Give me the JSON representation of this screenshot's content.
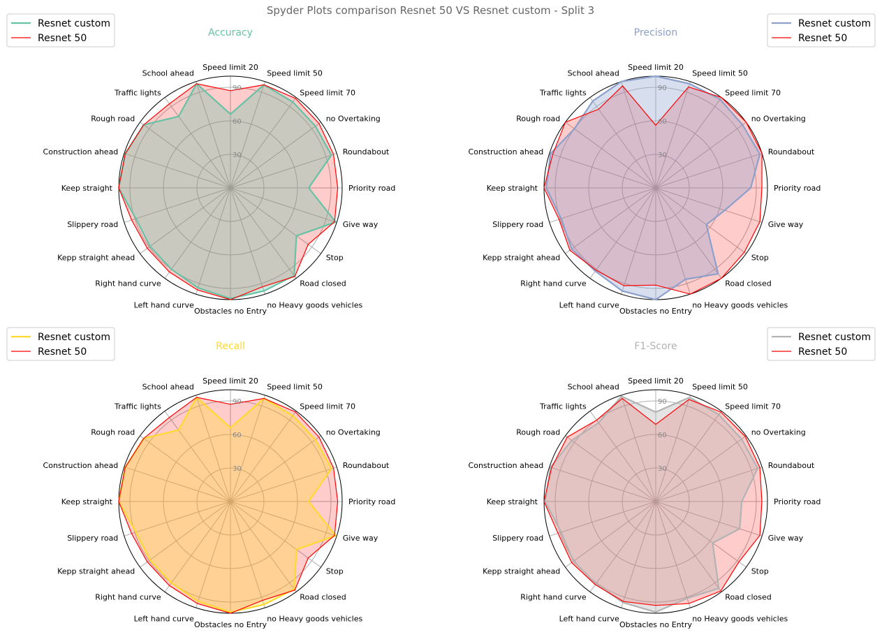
{
  "figure": {
    "title": "Spyder Plots comparison Resnet 50 VS Resnet custom - Split 3"
  },
  "chart_data": [
    {
      "type": "radar",
      "title": "Accuracy",
      "color": "#66c2a5",
      "categories": [
        "Speed limit 20",
        "Speed limit 50",
        "Speed limit 70",
        "no Overtaking",
        "Roundabout",
        "Priority road",
        "Give way",
        "Stop",
        "Road closed",
        "no Heavy goods vehicles",
        "Obstacles no Entry",
        "Left hand curve",
        "Right hand curve",
        "Kepp straight ahead",
        "Slippery road",
        "Keep straight",
        "Construction ahead",
        "Rough road",
        "Traffic lights",
        "School ahead"
      ],
      "ticks": [
        30,
        60,
        90
      ],
      "rlim": [
        0,
        100
      ],
      "legend_loc": "top-left",
      "series": [
        {
          "name": "Resnet custom",
          "values": [
            66,
            97,
            95,
            94,
            95,
            70,
            99,
            73,
            97,
            97,
            99,
            94,
            90,
            89,
            89,
            100,
            99,
            96,
            79,
            98
          ]
        },
        {
          "name": "Resnet 50",
          "values": [
            87,
            97,
            99,
            98,
            97,
            96,
            98,
            86,
            98,
            93,
            100,
            96,
            93,
            92,
            93,
            100,
            99,
            96,
            93,
            98
          ]
        }
      ]
    },
    {
      "type": "radar",
      "title": "Precision",
      "color": "#8da0cb",
      "categories": [
        "Speed limit 20",
        "Speed limit 50",
        "Speed limit 70",
        "no Overtaking",
        "Roundabout",
        "Priority road",
        "Give way",
        "Stop",
        "Road closed",
        "no Heavy goods vehicles",
        "Obstacles no Entry",
        "Left hand curve",
        "Right hand curve",
        "Kepp straight ahead",
        "Slippery road",
        "Keep straight",
        "Construction ahead",
        "Rough road",
        "Traffic lights",
        "School ahead"
      ],
      "ticks": [
        30,
        60,
        90
      ],
      "rlim": [
        0,
        100
      ],
      "legend_loc": "top-right",
      "series": [
        {
          "name": "Resnet custom",
          "values": [
            100,
            98,
            98,
            96,
            98,
            85,
            65,
            56,
            95,
            86,
            100,
            97,
            92,
            93,
            89,
            98,
            99,
            90,
            96,
            100
          ]
        },
        {
          "name": "Resnet 50",
          "values": [
            56,
            95,
            100,
            100,
            100,
            95,
            98,
            98,
            100,
            100,
            87,
            92,
            91,
            95,
            91,
            100,
            97,
            100,
            87,
            96
          ]
        }
      ]
    },
    {
      "type": "radar",
      "title": "Recall",
      "color": "#ffd92f",
      "categories": [
        "Speed limit 20",
        "Speed limit 50",
        "Speed limit 70",
        "no Overtaking",
        "Roundabout",
        "Priority road",
        "Give way",
        "Stop",
        "Road closed",
        "no Heavy goods vehicles",
        "Obstacles no Entry",
        "Left hand curve",
        "Right hand curve",
        "Kepp straight ahead",
        "Slippery road",
        "Keep straight",
        "Construction ahead",
        "Rough road",
        "Traffic lights",
        "School ahead"
      ],
      "ticks": [
        30,
        60,
        90
      ],
      "rlim": [
        0,
        100
      ],
      "legend_loc": "top-left",
      "series": [
        {
          "name": "Resnet custom",
          "values": [
            66,
            97,
            95,
            94,
            95,
            70,
            99,
            73,
            97,
            97,
            99,
            94,
            90,
            89,
            89,
            100,
            99,
            96,
            79,
            98
          ]
        },
        {
          "name": "Resnet 50",
          "values": [
            87,
            97,
            99,
            98,
            97,
            96,
            98,
            86,
            98,
            93,
            100,
            96,
            93,
            92,
            93,
            100,
            99,
            96,
            93,
            98
          ]
        }
      ]
    },
    {
      "type": "radar",
      "title": "F1-Score",
      "color": "#b3b3b3",
      "categories": [
        "Speed limit 20",
        "Speed limit 50",
        "Speed limit 70",
        "no Overtaking",
        "Roundabout",
        "Priority road",
        "Give way",
        "Stop",
        "Road closed",
        "no Heavy goods vehicles",
        "Obstacles no Entry",
        "Left hand curve",
        "Right hand curve",
        "Kepp straight ahead",
        "Slippery road",
        "Keep straight",
        "Construction ahead",
        "Rough road",
        "Traffic lights",
        "School ahead"
      ],
      "ticks": [
        30,
        60,
        90
      ],
      "rlim": [
        0,
        100
      ],
      "legend_loc": "top-right",
      "series": [
        {
          "name": "Resnet custom",
          "values": [
            80,
            98,
            96,
            95,
            96,
            77,
            79,
            63,
            96,
            91,
            99,
            95,
            91,
            91,
            89,
            99,
            99,
            93,
            87,
            99
          ]
        },
        {
          "name": "Resnet 50",
          "values": [
            69,
            96,
            99,
            99,
            98,
            95,
            98,
            92,
            99,
            96,
            93,
            94,
            92,
            93,
            92,
            100,
            98,
            98,
            90,
            97
          ]
        }
      ]
    }
  ]
}
